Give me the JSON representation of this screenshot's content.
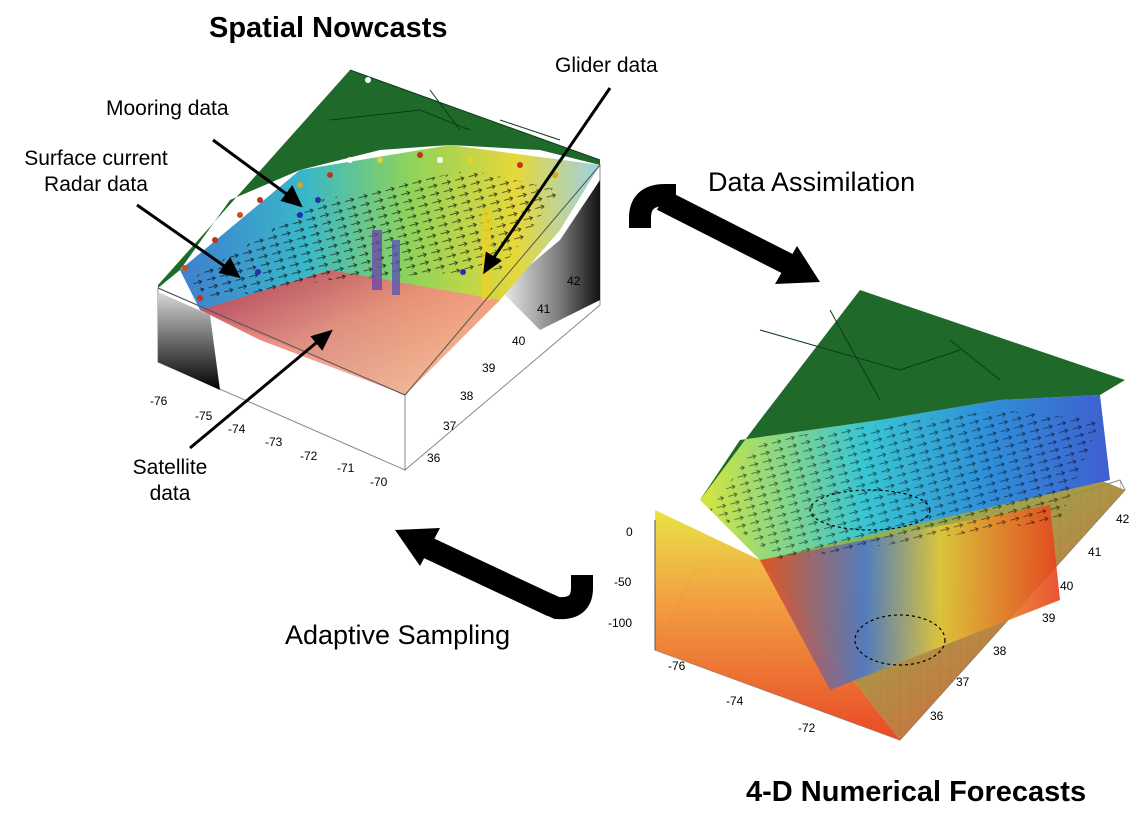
{
  "titles": {
    "spatial": "Spatial Nowcasts",
    "forecast": "4-D Numerical Forecasts"
  },
  "labels": {
    "glider": "Glider data",
    "mooring": "Mooring data",
    "surface_line1": "Surface current",
    "surface_line2": "Radar data",
    "satellite_line1": "Satellite",
    "satellite_line2": "data",
    "data_assimilation": "Data Assimilation",
    "adaptive_sampling": "Adaptive Sampling"
  },
  "nowcast_ticks": {
    "lon": [
      "-76",
      "-75",
      "-74",
      "-73",
      "-72",
      "-71",
      "-70"
    ],
    "lat": [
      "36",
      "37",
      "38",
      "39",
      "40",
      "41",
      "42"
    ]
  },
  "forecast_ticks": {
    "depth": [
      "0",
      "-50",
      "-100"
    ],
    "lon": [
      "-76",
      "-74",
      "-72"
    ],
    "lat": [
      "36",
      "37",
      "38",
      "39",
      "40",
      "41",
      "42"
    ]
  },
  "colors": {
    "land": "#1f6a2a",
    "arrow": "#000000",
    "warm": "#e8401c",
    "cool": "#2f8fd8",
    "mid": "#e6e23a"
  }
}
